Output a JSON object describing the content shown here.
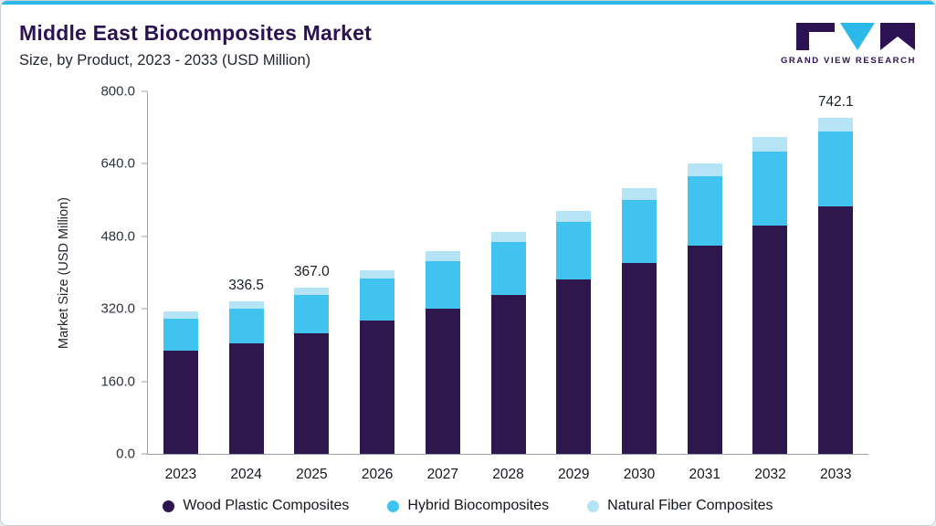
{
  "header": {
    "title": "Middle East Biocomposites Market",
    "subtitle": "Size, by Product, 2023 - 2033 (USD Million)"
  },
  "logo": {
    "text": "GRAND VIEW RESEARCH"
  },
  "colors": {
    "accent": "#2ab9e9",
    "title_purple": "#2d1253",
    "axis_gray": "#97a1aa"
  },
  "chart_data": {
    "type": "bar",
    "stacked": true,
    "title": "Middle East Biocomposites Market Size, by Product, 2023 - 2033 (USD Million)",
    "xlabel": "",
    "ylabel": "Market Size (USD Million)",
    "ylim": [
      0,
      800
    ],
    "yticks": [
      0,
      160,
      320,
      480,
      640,
      800
    ],
    "ytick_labels": [
      "0.0",
      "160.0",
      "320.0",
      "480.0",
      "640.0",
      "800.0"
    ],
    "grid": false,
    "legend_position": "bottom",
    "categories": [
      "2023",
      "2024",
      "2025",
      "2026",
      "2027",
      "2028",
      "2029",
      "2030",
      "2031",
      "2032",
      "2033"
    ],
    "series": [
      {
        "name": "Wood Plastic Composites",
        "color": "#2d174d",
        "values": [
          228,
          244,
          266,
          294,
          321,
          351,
          384,
          421,
          460,
          503,
          546
        ]
      },
      {
        "name": "Hybrid Biocomposites",
        "color": "#41c3f0",
        "values": [
          70,
          76,
          84,
          92,
          104,
          116,
          128,
          140,
          152,
          164,
          166
        ]
      },
      {
        "name": "Natural Fiber Composites",
        "color": "#b5e4f7",
        "values": [
          17,
          16.5,
          17,
          19,
          22,
          23,
          24,
          25,
          29,
          32,
          30.1
        ]
      }
    ],
    "totals": [
      315,
      336.5,
      367.0,
      405,
      447,
      490,
      536,
      586,
      641,
      699,
      742.1
    ],
    "annotations": [
      {
        "index": 1,
        "text": "336.5"
      },
      {
        "index": 2,
        "text": "367.0"
      },
      {
        "index": 10,
        "text": "742.1"
      }
    ]
  }
}
